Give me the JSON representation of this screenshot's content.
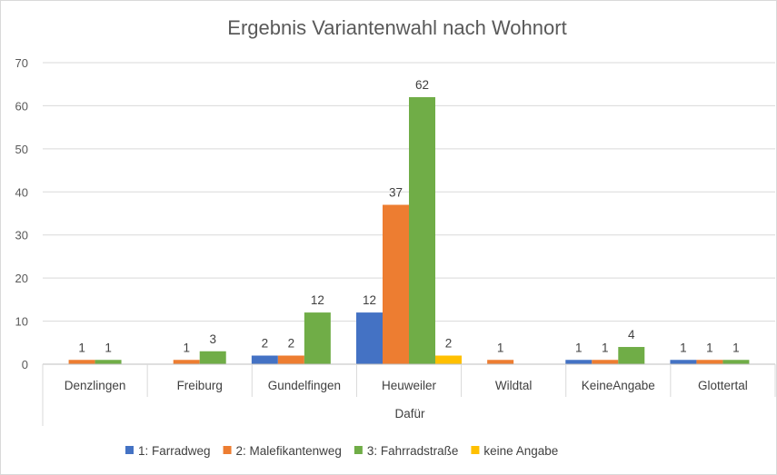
{
  "chart_data": {
    "type": "bar",
    "title": "Ergebnis Variantenwahl nach Wohnort",
    "group_label": "Dafür",
    "categories": [
      "Denzlingen",
      "Freiburg",
      "Gundelfingen",
      "Heuweiler",
      "Wildtal",
      "KeineAngabe",
      "Glottertal"
    ],
    "series": [
      {
        "name": "1: Farradweg",
        "color": "#4472c4",
        "values": [
          0,
          0,
          2,
          12,
          0,
          1,
          1
        ]
      },
      {
        "name": "2: Malefikantenweg",
        "color": "#ed7d31",
        "values": [
          1,
          1,
          2,
          37,
          1,
          1,
          1
        ]
      },
      {
        "name": "3: Fahrradstraße",
        "color": "#70ad47",
        "values": [
          1,
          3,
          12,
          62,
          0,
          4,
          1
        ]
      },
      {
        "name": "keine Angabe",
        "color": "#ffc000",
        "values": [
          0,
          0,
          0,
          2,
          0,
          0,
          0
        ]
      }
    ],
    "ylim": [
      0,
      70
    ],
    "yticks": [
      0,
      10,
      20,
      30,
      40,
      50,
      60,
      70
    ],
    "grid": true,
    "legend_position": "bottom",
    "xlabel": "",
    "ylabel": ""
  }
}
